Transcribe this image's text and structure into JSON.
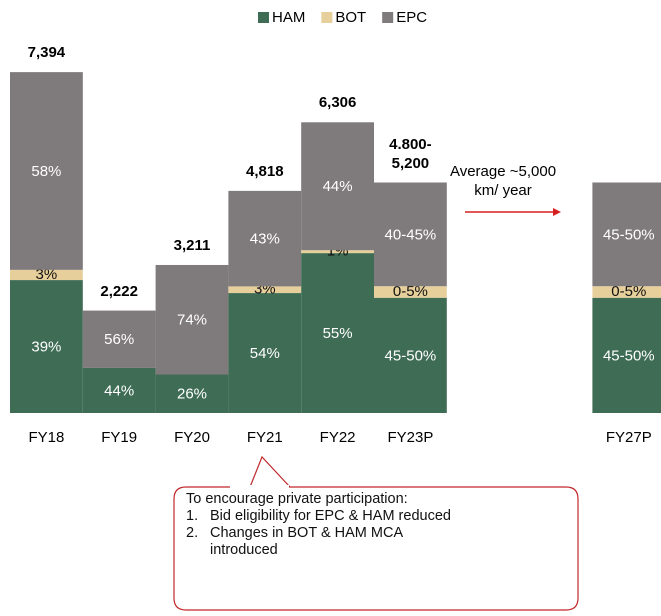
{
  "chart_data": {
    "type": "bar",
    "categories": [
      "FY18",
      "FY19",
      "FY20",
      "FY21",
      "FY22",
      "FY23P",
      null,
      null,
      "FY27P"
    ],
    "totals": [
      7394,
      2222,
      3211,
      4818,
      6306,
      5000,
      null,
      null,
      5000
    ],
    "total_labels": [
      "7,394",
      "2,222",
      "3,211",
      "4,818",
      "6,306",
      "4.800-5,200",
      null,
      null,
      null
    ],
    "series": [
      {
        "name": "HAM",
        "color": "#3f6c55",
        "values": [
          39,
          44,
          26,
          54,
          55,
          50,
          null,
          null,
          50
        ],
        "value_labels": [
          "39%",
          "44%",
          "26%",
          "54%",
          "55%",
          "45-50%",
          null,
          null,
          "45-50%"
        ]
      },
      {
        "name": "BOT",
        "color": "#e6cf9a",
        "values": [
          3,
          0,
          0,
          3,
          1,
          5,
          null,
          null,
          5
        ],
        "value_labels": [
          "3%",
          null,
          null,
          "3%",
          "1%",
          "0-5%",
          null,
          null,
          "0-5%"
        ]
      },
      {
        "name": "EPC",
        "color": "#7f7a7b",
        "values": [
          58,
          56,
          74,
          43,
          44,
          45,
          null,
          null,
          45
        ],
        "value_labels": [
          "58%",
          "56%",
          "74%",
          "43%",
          "44%",
          "40-45%",
          null,
          null,
          "45-50%"
        ]
      }
    ],
    "annotation": "Average ~5,000 km/ year",
    "callout": {
      "title": "To encourage private participation:",
      "items": [
        {
          "number": "1.",
          "text": "Bid eligibility for EPC & HAM reduced"
        },
        {
          "number": "2.",
          "text": "Changes in BOT & HAM MCA introduced"
        }
      ]
    }
  }
}
